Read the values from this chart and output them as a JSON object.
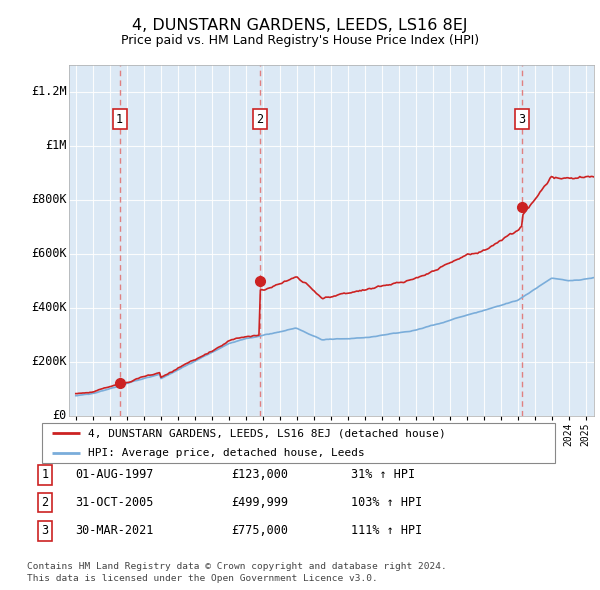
{
  "title": "4, DUNSTARN GARDENS, LEEDS, LS16 8EJ",
  "subtitle": "Price paid vs. HM Land Registry's House Price Index (HPI)",
  "ylim": [
    0,
    1300000
  ],
  "yticks": [
    0,
    200000,
    400000,
    600000,
    800000,
    1000000,
    1200000
  ],
  "ytick_labels": [
    "£0",
    "£200K",
    "£400K",
    "£600K",
    "£800K",
    "£1M",
    "£1.2M"
  ],
  "xmin": 1994.6,
  "xmax": 2025.5,
  "background_color": "#dce9f5",
  "purchases": [
    {
      "year": 1997.58,
      "price": 123000,
      "label": "1"
    },
    {
      "year": 2005.83,
      "price": 499999,
      "label": "2"
    },
    {
      "year": 2021.24,
      "price": 775000,
      "label": "3"
    }
  ],
  "red_line_color": "#cc2222",
  "blue_line_color": "#7aadda",
  "dashed_line_color": "#e08080",
  "legend_entry1": "4, DUNSTARN GARDENS, LEEDS, LS16 8EJ (detached house)",
  "legend_entry2": "HPI: Average price, detached house, Leeds",
  "table_rows": [
    [
      "1",
      "01-AUG-1997",
      "£123,000",
      "31% ↑ HPI"
    ],
    [
      "2",
      "31-OCT-2005",
      "£499,999",
      "103% ↑ HPI"
    ],
    [
      "3",
      "30-MAR-2021",
      "£775,000",
      "111% ↑ HPI"
    ]
  ],
  "footer": "Contains HM Land Registry data © Crown copyright and database right 2024.\nThis data is licensed under the Open Government Licence v3.0."
}
